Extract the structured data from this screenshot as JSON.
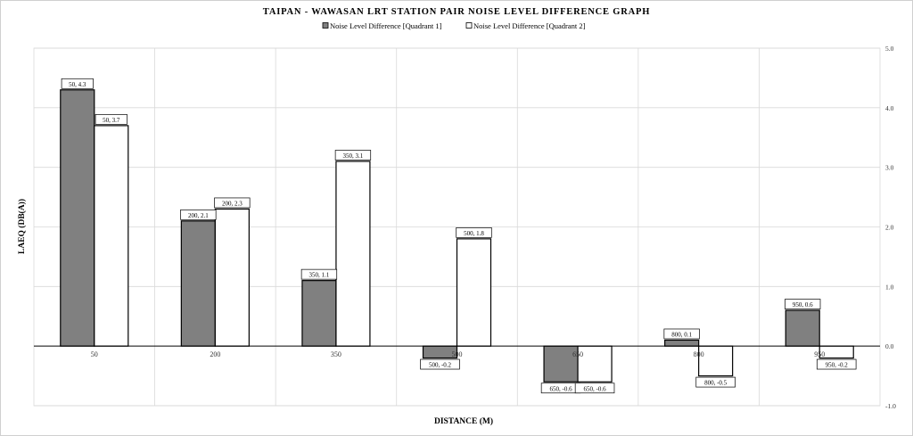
{
  "chart_data": {
    "type": "bar",
    "title": "TAIPAN - WAWASAN LRT STATION PAIR NOISE LEVEL DIFFERENCE GRAPH",
    "xlabel": "DISTANCE (M)",
    "ylabel": "LAEQ (DB(A))",
    "categories": [
      "50",
      "200",
      "350",
      "500",
      "650",
      "800",
      "950"
    ],
    "ylim": [
      -1.0,
      5.0
    ],
    "yticks": [
      "-1.0",
      "0.0",
      "1.0",
      "2.0",
      "3.0",
      "4.0",
      "5.0"
    ],
    "y_axis_side": "right",
    "grid": true,
    "legend_position": "top-center",
    "series": [
      {
        "name": "Noise Level Difference [Quadrant 1]",
        "color": "#808080",
        "values": [
          4.3,
          2.1,
          1.1,
          -0.2,
          -0.6,
          0.1,
          0.6
        ],
        "data_labels": [
          "50, 4.3",
          "200, 2.1",
          "350, 1.1",
          "500, -0.2",
          "650, -0.6",
          "800, 0.1",
          "950, 0.6"
        ]
      },
      {
        "name": "Noise Level Difference [Quadrant 2]",
        "color": "#ffffff",
        "values": [
          3.7,
          2.3,
          3.1,
          1.8,
          -0.6,
          -0.5,
          -0.2
        ],
        "data_labels": [
          "50, 3.7",
          "200, 2.3",
          "350, 3.1",
          "500, 1.8",
          "650, -0.6",
          "800, -0.5",
          "950, -0.2"
        ]
      }
    ]
  }
}
